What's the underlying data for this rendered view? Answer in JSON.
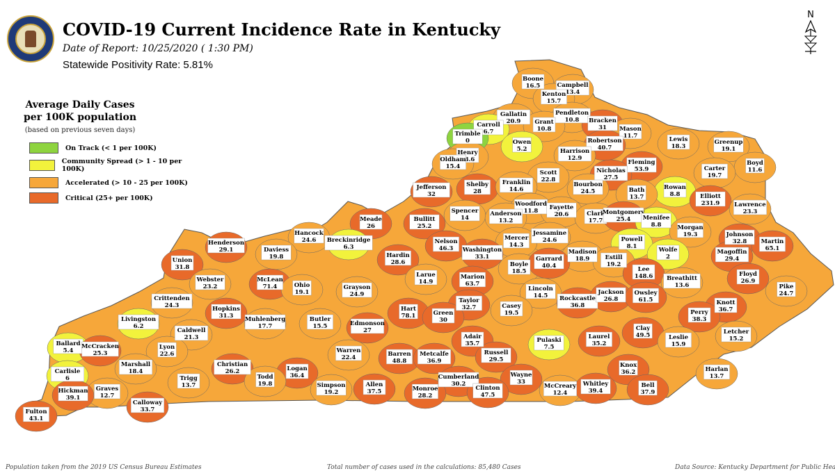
{
  "header": {
    "title": "COVID-19 Current Incidence Rate in Kentucky",
    "date_of_report": "Date of Report: 10/25/2020 ( 1:30 PM)",
    "positivity": "Statewide Positivity Rate: 5.81%",
    "north_label": "N"
  },
  "legend": {
    "title_line1": "Average Daily Cases",
    "title_line2": "per 100K population",
    "subtitle": "(based on previous seven days)",
    "items": [
      {
        "label": "On Track (< 1 per 100K)",
        "color": "#8ed43f"
      },
      {
        "label": "Community Spread (> 1 - 10 per 100K)",
        "color": "#f2f23c"
      },
      {
        "label": "Accelerated (> 10 - 25 per 100K)",
        "color": "#f6a73a"
      },
      {
        "label": "Critical (25+ per 100K)",
        "color": "#e86a2a"
      }
    ]
  },
  "map": {
    "state_fill": "#f6a73a",
    "counties": [
      {
        "name": "Boone",
        "value": "16.5",
        "category": "accelerated"
      },
      {
        "name": "Campbell",
        "value": "13.4",
        "category": "accelerated"
      },
      {
        "name": "Kenton",
        "value": "15.7",
        "category": "accelerated"
      },
      {
        "name": "Gallatin",
        "value": "20.9",
        "category": "accelerated"
      },
      {
        "name": "Pendleton",
        "value": "10.8",
        "category": "accelerated"
      },
      {
        "name": "Grant",
        "value": "10.8",
        "category": "accelerated"
      },
      {
        "name": "Carroll",
        "value": "6.7",
        "category": "community"
      },
      {
        "name": "Trimble",
        "value": "0",
        "category": "ontrack"
      },
      {
        "name": "Bracken",
        "value": "31",
        "category": "critical"
      },
      {
        "name": "Mason",
        "value": "11.7",
        "category": "accelerated"
      },
      {
        "name": "Robertson",
        "value": "40.7",
        "category": "critical"
      },
      {
        "name": "Owen",
        "value": "5.2",
        "category": "community"
      },
      {
        "name": "Lewis",
        "value": "18.3",
        "category": "accelerated"
      },
      {
        "name": "Greenup",
        "value": "19.1",
        "category": "accelerated"
      },
      {
        "name": "Harrison",
        "value": "12.9",
        "category": "accelerated"
      },
      {
        "name": "Henry",
        "value": "18.6",
        "category": "accelerated"
      },
      {
        "name": "Oldham",
        "value": "15.4",
        "category": "accelerated"
      },
      {
        "name": "Fleming",
        "value": "53.9",
        "category": "critical"
      },
      {
        "name": "Boyd",
        "value": "11.6",
        "category": "accelerated"
      },
      {
        "name": "Carter",
        "value": "19.7",
        "category": "accelerated"
      },
      {
        "name": "Nicholas",
        "value": "27.5",
        "category": "critical"
      },
      {
        "name": "Scott",
        "value": "22.8",
        "category": "accelerated"
      },
      {
        "name": "Jefferson",
        "value": "32",
        "category": "critical"
      },
      {
        "name": "Shelby",
        "value": "28",
        "category": "critical"
      },
      {
        "name": "Franklin",
        "value": "14.6",
        "category": "accelerated"
      },
      {
        "name": "Bourbon",
        "value": "24.5",
        "category": "accelerated"
      },
      {
        "name": "Rowan",
        "value": "8.8",
        "category": "community"
      },
      {
        "name": "Bath",
        "value": "13.7",
        "category": "accelerated"
      },
      {
        "name": "Elliott",
        "value": "231.9",
        "category": "critical"
      },
      {
        "name": "Lawrence",
        "value": "23.3",
        "category": "accelerated"
      },
      {
        "name": "Woodford",
        "value": "11.8",
        "category": "accelerated"
      },
      {
        "name": "Fayette",
        "value": "20.6",
        "category": "accelerated"
      },
      {
        "name": "Spencer",
        "value": "14",
        "category": "accelerated"
      },
      {
        "name": "Anderson",
        "value": "13.2",
        "category": "accelerated"
      },
      {
        "name": "Clark",
        "value": "17.7",
        "category": "accelerated"
      },
      {
        "name": "Montgomery",
        "value": "25.4",
        "category": "critical"
      },
      {
        "name": "Menifee",
        "value": "8.8",
        "category": "community"
      },
      {
        "name": "Meade",
        "value": "26",
        "category": "critical"
      },
      {
        "name": "Bullitt",
        "value": "25.2",
        "category": "critical"
      },
      {
        "name": "Hancock",
        "value": "24.6",
        "category": "accelerated"
      },
      {
        "name": "Morgan",
        "value": "19.3",
        "category": "accelerated"
      },
      {
        "name": "Johnson",
        "value": "32.8",
        "category": "critical"
      },
      {
        "name": "Martin",
        "value": "65.1",
        "category": "critical"
      },
      {
        "name": "Jessamine",
        "value": "24.6",
        "category": "accelerated"
      },
      {
        "name": "Mercer",
        "value": "14.3",
        "category": "accelerated"
      },
      {
        "name": "Nelson",
        "value": "46.3",
        "category": "critical"
      },
      {
        "name": "Breckinridge",
        "value": "6.3",
        "category": "community"
      },
      {
        "name": "Henderson",
        "value": "29.1",
        "category": "critical"
      },
      {
        "name": "Daviess",
        "value": "19.8",
        "category": "accelerated"
      },
      {
        "name": "Powell",
        "value": "8.1",
        "category": "community"
      },
      {
        "name": "Wolfe",
        "value": "2",
        "category": "community"
      },
      {
        "name": "Washington",
        "value": "33.1",
        "category": "critical"
      },
      {
        "name": "Madison",
        "value": "18.9",
        "category": "accelerated"
      },
      {
        "name": "Estill",
        "value": "19.2",
        "category": "accelerated"
      },
      {
        "name": "Magoffin",
        "value": "29.4",
        "category": "critical"
      },
      {
        "name": "Union",
        "value": "31.8",
        "category": "critical"
      },
      {
        "name": "Hardin",
        "value": "28.6",
        "category": "critical"
      },
      {
        "name": "Boyle",
        "value": "18.5",
        "category": "accelerated"
      },
      {
        "name": "Garrard",
        "value": "40.4",
        "category": "critical"
      },
      {
        "name": "Lee",
        "value": "148.6",
        "category": "critical"
      },
      {
        "name": "Larue",
        "value": "14.9",
        "category": "accelerated"
      },
      {
        "name": "Marion",
        "value": "63.7",
        "category": "critical"
      },
      {
        "name": "Breathitt",
        "value": "13.6",
        "category": "accelerated"
      },
      {
        "name": "Floyd",
        "value": "26.9",
        "category": "critical"
      },
      {
        "name": "Webster",
        "value": "23.2",
        "category": "accelerated"
      },
      {
        "name": "McLean",
        "value": "71.4",
        "category": "critical"
      },
      {
        "name": "Ohio",
        "value": "19.1",
        "category": "accelerated"
      },
      {
        "name": "Grayson",
        "value": "24.9",
        "category": "accelerated"
      },
      {
        "name": "Lincoln",
        "value": "14.5",
        "category": "accelerated"
      },
      {
        "name": "Pike",
        "value": "24.7",
        "category": "accelerated"
      },
      {
        "name": "Crittenden",
        "value": "24.3",
        "category": "accelerated"
      },
      {
        "name": "Taylor",
        "value": "32.7",
        "category": "critical"
      },
      {
        "name": "Rockcastle",
        "value": "36.8",
        "category": "critical"
      },
      {
        "name": "Jackson",
        "value": "26.8",
        "category": "critical"
      },
      {
        "name": "Owsley",
        "value": "61.5",
        "category": "critical"
      },
      {
        "name": "Knott",
        "value": "36.7",
        "category": "critical"
      },
      {
        "name": "Hopkins",
        "value": "31.3",
        "category": "critical"
      },
      {
        "name": "Hart",
        "value": "78.1",
        "category": "critical"
      },
      {
        "name": "Green",
        "value": "30",
        "category": "critical"
      },
      {
        "name": "Casey",
        "value": "19.5",
        "category": "accelerated"
      },
      {
        "name": "Perry",
        "value": "38.3",
        "category": "critical"
      },
      {
        "name": "Livingston",
        "value": "6.2",
        "category": "community"
      },
      {
        "name": "Muhlenberg",
        "value": "17.7",
        "category": "accelerated"
      },
      {
        "name": "Butler",
        "value": "15.5",
        "category": "accelerated"
      },
      {
        "name": "Edmonson",
        "value": "27",
        "category": "critical"
      },
      {
        "name": "Caldwell",
        "value": "21.3",
        "category": "accelerated"
      },
      {
        "name": "Clay",
        "value": "49.5",
        "category": "critical"
      },
      {
        "name": "Letcher",
        "value": "15.2",
        "category": "accelerated"
      },
      {
        "name": "Ballard",
        "value": "5.4",
        "category": "community"
      },
      {
        "name": "McCracken",
        "value": "25.3",
        "category": "critical"
      },
      {
        "name": "Adair",
        "value": "35.7",
        "category": "critical"
      },
      {
        "name": "Pulaski",
        "value": "7.5",
        "category": "community"
      },
      {
        "name": "Laurel",
        "value": "35.2",
        "category": "critical"
      },
      {
        "name": "Leslie",
        "value": "15.9",
        "category": "accelerated"
      },
      {
        "name": "Lyon",
        "value": "22.6",
        "category": "accelerated"
      },
      {
        "name": "Warren",
        "value": "22.4",
        "category": "accelerated"
      },
      {
        "name": "Barren",
        "value": "48.8",
        "category": "critical"
      },
      {
        "name": "Metcalfe",
        "value": "36.9",
        "category": "critical"
      },
      {
        "name": "Russell",
        "value": "29.5",
        "category": "critical"
      },
      {
        "name": "Marshall",
        "value": "18.4",
        "category": "accelerated"
      },
      {
        "name": "Christian",
        "value": "26.2",
        "category": "critical"
      },
      {
        "name": "Logan",
        "value": "36.4",
        "category": "critical"
      },
      {
        "name": "Knox",
        "value": "36.2",
        "category": "critical"
      },
      {
        "name": "Harlan",
        "value": "13.7",
        "category": "accelerated"
      },
      {
        "name": "Carlisle",
        "value": "6",
        "category": "community"
      },
      {
        "name": "Trigg",
        "value": "13.7",
        "category": "accelerated"
      },
      {
        "name": "Todd",
        "value": "19.8",
        "category": "accelerated"
      },
      {
        "name": "Wayne",
        "value": "33",
        "category": "critical"
      },
      {
        "name": "Cumberland",
        "value": "30.2",
        "category": "critical"
      },
      {
        "name": "Graves",
        "value": "12.7",
        "category": "accelerated"
      },
      {
        "name": "Simpson",
        "value": "19.2",
        "category": "accelerated"
      },
      {
        "name": "Allen",
        "value": "37.5",
        "category": "critical"
      },
      {
        "name": "Monroe",
        "value": "28.2",
        "category": "critical"
      },
      {
        "name": "Clinton",
        "value": "47.5",
        "category": "critical"
      },
      {
        "name": "McCreary",
        "value": "12.4",
        "category": "accelerated"
      },
      {
        "name": "Whitley",
        "value": "39.4",
        "category": "critical"
      },
      {
        "name": "Bell",
        "value": "37.9",
        "category": "critical"
      },
      {
        "name": "Hickman",
        "value": "39.1",
        "category": "critical"
      },
      {
        "name": "Calloway",
        "value": "33.7",
        "category": "critical"
      },
      {
        "name": "Fulton",
        "value": "43.1",
        "category": "critical"
      }
    ]
  },
  "footer": {
    "left": "Population taken from the 2019 US Census Bureau Estimates",
    "center": "Total number of cases used in the calculations: 85,480 Cases",
    "right": "Data Source: Kentucky Department for Public Health"
  }
}
